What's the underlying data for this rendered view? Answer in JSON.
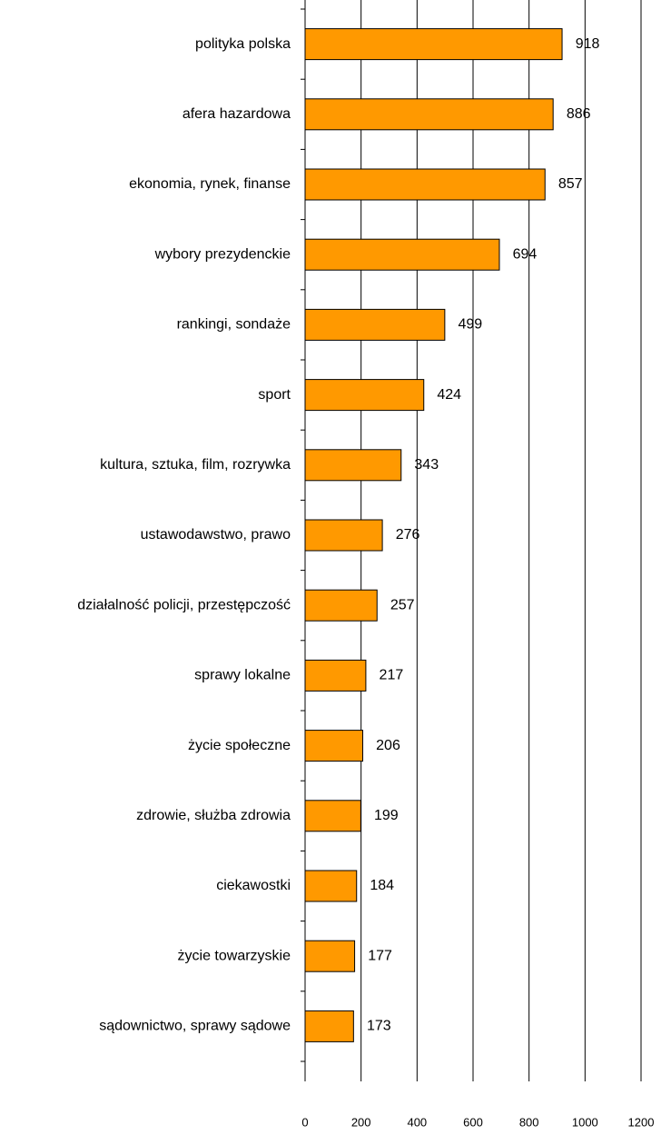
{
  "chart_data": {
    "type": "bar",
    "orientation": "horizontal",
    "categories": [
      "polityka polska",
      "afera hazardowa",
      "ekonomia, rynek, finanse",
      "wybory prezydenckie",
      "rankingi, sondaże",
      "sport",
      "kultura, sztuka, film, rozrywka",
      "ustawodawstwo, prawo",
      "działalność policji, przestępczość",
      "sprawy lokalne",
      "życie społeczne",
      "zdrowie, służba zdrowia",
      "ciekawostki",
      "życie towarzyskie",
      "sądownictwo, sprawy sądowe"
    ],
    "values": [
      918,
      886,
      857,
      694,
      499,
      424,
      343,
      276,
      257,
      217,
      206,
      199,
      184,
      177,
      173
    ],
    "color": "#ff9900",
    "xlim": [
      0,
      1200
    ],
    "xticks": [
      0,
      200,
      400,
      600,
      800,
      1000,
      1200
    ],
    "grid": true
  }
}
